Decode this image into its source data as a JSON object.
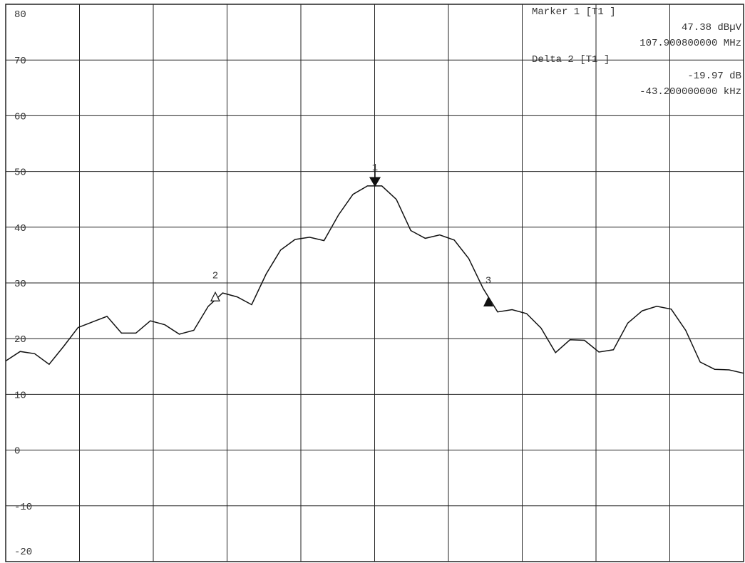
{
  "chart_data": {
    "type": "line",
    "values": [
      16.0,
      17.7,
      17.3,
      15.4,
      18.6,
      22.0,
      23.0,
      24.0,
      21.0,
      21.0,
      23.2,
      22.5,
      20.8,
      21.5,
      25.8,
      28.2,
      27.5,
      26.1,
      31.6,
      35.9,
      37.8,
      38.2,
      37.6,
      42.2,
      45.9,
      47.4,
      47.4,
      45.0,
      39.4,
      38.0,
      38.6,
      37.7,
      34.4,
      29.0,
      24.8,
      25.2,
      24.5,
      21.9,
      17.5,
      19.8,
      19.7,
      17.6,
      18.0,
      22.8,
      25.0,
      25.8,
      25.3,
      21.5,
      15.8,
      14.5,
      14.4,
      13.8
    ],
    "color": "#111111",
    "ylim": [
      -20,
      80
    ],
    "yticks": [
      80,
      70,
      60,
      50,
      40,
      30,
      20,
      10,
      0,
      -10,
      -20
    ],
    "grid": true,
    "markers": [
      {
        "label": "1",
        "value": 47.38,
        "filled": true
      },
      {
        "label": "2",
        "value": 27.41,
        "filled": false
      },
      {
        "label": "3",
        "value": 26.5,
        "filled": true
      }
    ],
    "annotations": [
      "Marker 1 [T1 ]",
      "47.38 dBµV",
      "107.900800000 MHz",
      "Delta 2 [T1 ]",
      "-19.97 dB",
      "-43.200000000 kHz"
    ]
  }
}
